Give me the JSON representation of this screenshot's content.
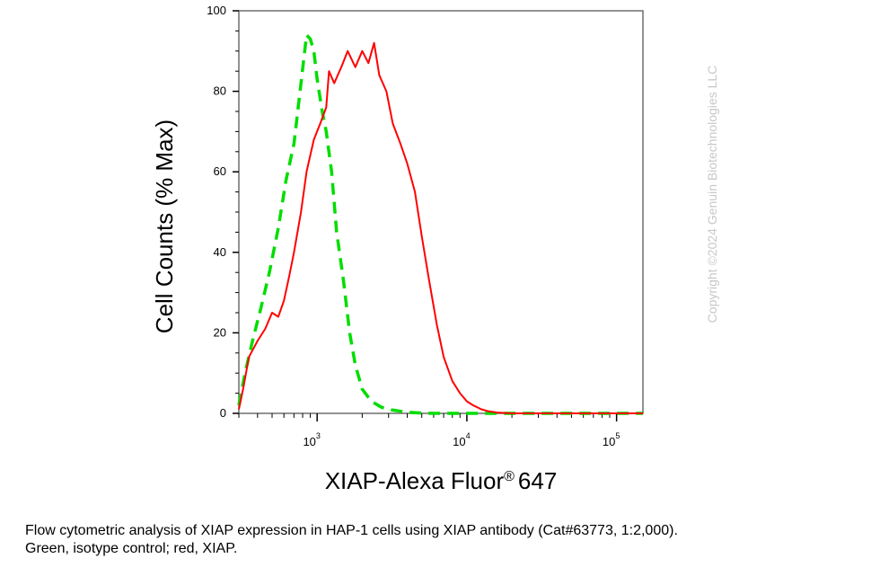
{
  "chart_data": {
    "type": "line",
    "ylabel": "Cell Counts (% Max)",
    "xlabel": "XIAP-Alexa Fluor",
    "xlabel_reg": "®",
    "xlabel_tail": "647",
    "xscale": "log",
    "xlim": [
      300,
      150000
    ],
    "ylim": [
      0,
      100
    ],
    "yticks": [
      "0",
      "20",
      "40",
      "60",
      "80",
      "100"
    ],
    "xticks": [
      {
        "value": 1000,
        "base": "10",
        "exp": "3"
      },
      {
        "value": 10000,
        "base": "10",
        "exp": "4"
      },
      {
        "value": 100000,
        "base": "10",
        "exp": "5"
      }
    ],
    "grid": false,
    "legend": "none",
    "series": [
      {
        "color": "#00dd00",
        "dash": "dashed",
        "x": [
          300,
          330,
          370,
          420,
          480,
          550,
          620,
          700,
          780,
          850,
          900,
          950,
          1000,
          1080,
          1150,
          1250,
          1350,
          1500,
          1650,
          1800,
          2000,
          2300,
          2700,
          3200,
          4000,
          5000,
          6000,
          8000,
          150000
        ],
        "y": [
          2,
          10,
          18,
          26,
          35,
          46,
          58,
          67,
          82,
          94,
          93,
          90,
          83,
          75,
          70,
          60,
          45,
          33,
          20,
          12,
          6,
          3,
          1.5,
          0.8,
          0.3,
          0.1,
          0,
          0,
          0
        ]
      },
      {
        "color": "#ff0000",
        "dash": "solid",
        "x": [
          300,
          320,
          350,
          400,
          450,
          500,
          550,
          600,
          650,
          700,
          780,
          850,
          950,
          1050,
          1150,
          1200,
          1300,
          1450,
          1600,
          1800,
          2000,
          2200,
          2400,
          2600,
          2900,
          3200,
          3600,
          4000,
          4500,
          5000,
          5600,
          6300,
          7000,
          8000,
          9000,
          10000,
          11000,
          12500,
          14000,
          16000,
          20000,
          150000
        ],
        "y": [
          1,
          6,
          14,
          18,
          21,
          25,
          24,
          28,
          34,
          40,
          50,
          60,
          68,
          72,
          76,
          85,
          82,
          86,
          90,
          86,
          90,
          87,
          92,
          84,
          80,
          72,
          67,
          62,
          55,
          44,
          33,
          22,
          14,
          8,
          5,
          3,
          2,
          1,
          0.5,
          0.2,
          0,
          0
        ]
      }
    ]
  },
  "watermark": "Copyright ©2024 Genuin Biotechnologies LLC",
  "caption": {
    "line1": "Flow cytometric analysis of XIAP expression in HAP-1 cells using XIAP antibody (Cat#63773, 1:2,000).",
    "line2": "Green, isotype control; red, XIAP."
  }
}
